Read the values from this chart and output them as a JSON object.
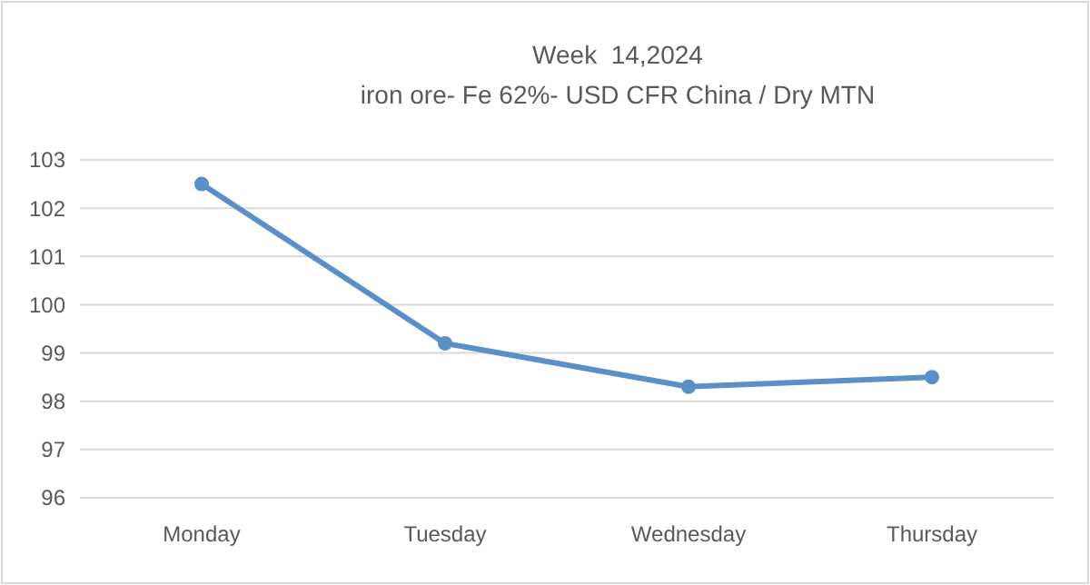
{
  "chart_data": {
    "type": "line",
    "title": "Week  14,2024",
    "subtitle": "iron ore- Fe 62%- USD CFR China / Dry MTN",
    "categories": [
      "Monday",
      "Tuesday",
      "Wednesday",
      "Thursday"
    ],
    "series": [
      {
        "color": "#5b8fc7",
        "values": [
          102.5,
          99.2,
          98.3,
          98.5
        ]
      }
    ],
    "ylim": [
      96,
      103
    ],
    "yticks": [
      96,
      97,
      98,
      99,
      100,
      101,
      102,
      103
    ],
    "grid": "y",
    "marker": "circle",
    "line_style": "solid"
  }
}
